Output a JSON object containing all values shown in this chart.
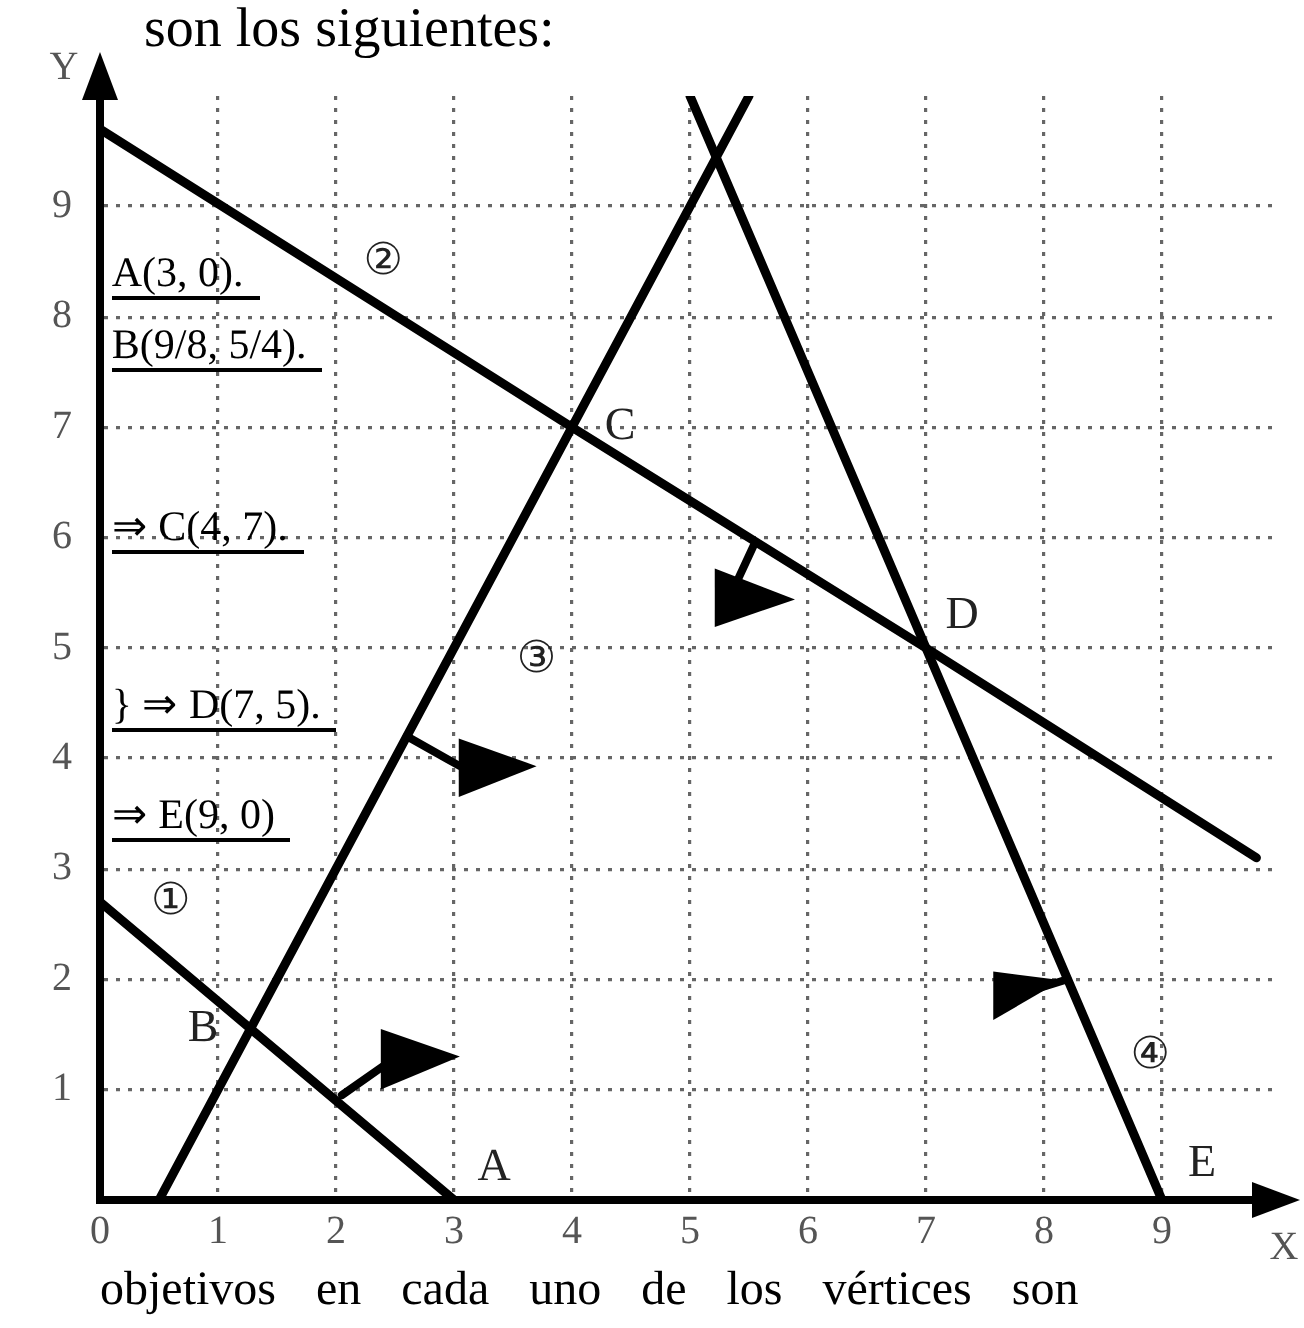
{
  "chart_data": {
    "type": "line",
    "xlabel": "X",
    "ylabel": "Y",
    "xlim": [
      0,
      10
    ],
    "ylim": [
      0,
      10
    ],
    "xticks": [
      0,
      1,
      2,
      3,
      4,
      5,
      6,
      7,
      8,
      9
    ],
    "yticks": [
      1,
      2,
      3,
      4,
      5,
      6,
      7,
      8,
      9
    ],
    "grid": true,
    "marker": "none",
    "series": [
      {
        "color": "#000000",
        "x": [
          0,
          3
        ],
        "values": [
          2.7,
          0
        ]
      },
      {
        "color": "#000000",
        "x": [
          0,
          4,
          7,
          9.8
        ],
        "values": [
          9.7,
          7,
          5,
          3.1
        ]
      },
      {
        "color": "#000000",
        "x": [
          0.5,
          4,
          5.5
        ],
        "values": [
          0,
          7,
          10
        ]
      },
      {
        "color": "#000000",
        "x": [
          5,
          7,
          9
        ],
        "values": [
          10,
          5,
          0
        ]
      }
    ],
    "annotations": [
      "son los siguientes:",
      "A(3, 0).",
      "B(9/8, 5/4).",
      "⇒ C(4, 7).",
      "} ⇒ D(7, 5).",
      "⇒ E(9, 0)",
      "objetivos en cada uno de los vértices son",
      "①",
      "②",
      "③",
      "④",
      {
        "text": "A",
        "x": 3,
        "y": 0
      },
      {
        "text": "B",
        "x": 1.28,
        "y": 1.55
      },
      {
        "text": "C",
        "x": 4,
        "y": 7
      },
      {
        "text": "D",
        "x": 7,
        "y": 5
      },
      {
        "text": "E",
        "x": 9,
        "y": 0
      }
    ]
  }
}
